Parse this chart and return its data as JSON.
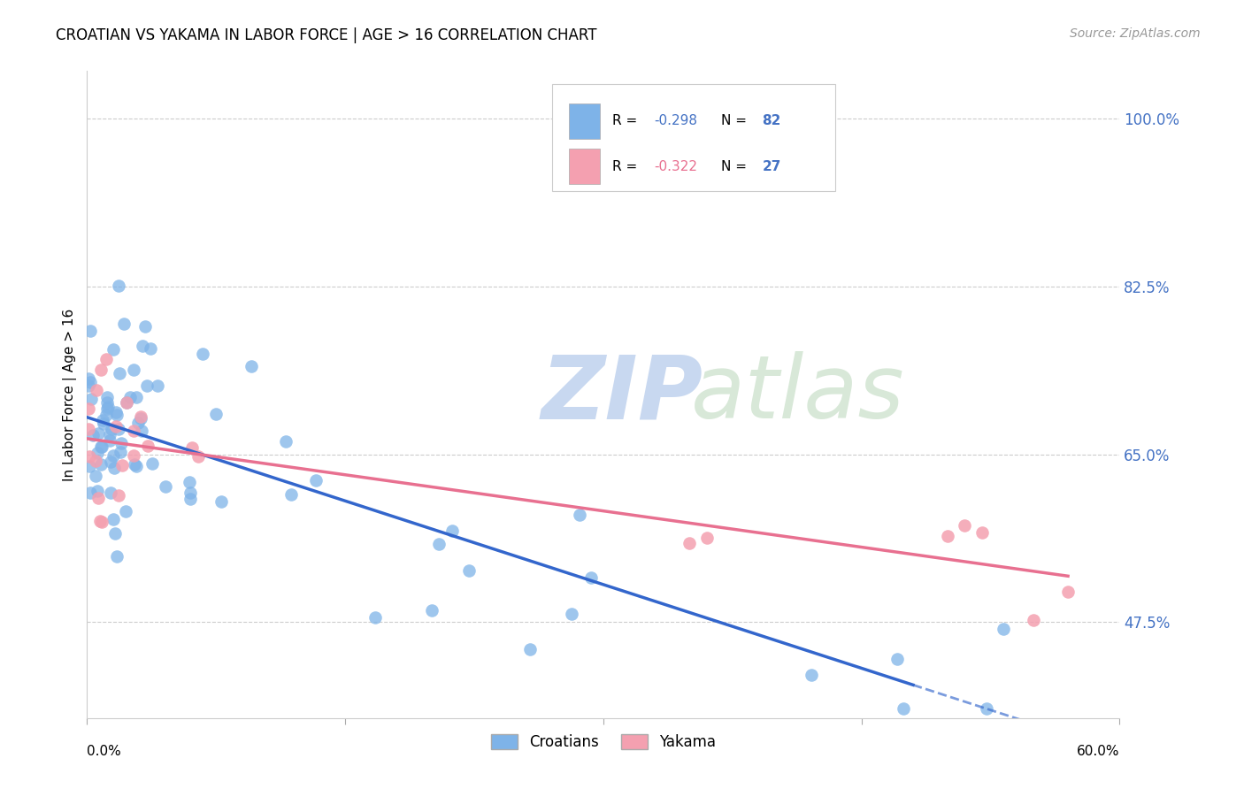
{
  "title": "CROATIAN VS YAKAMA IN LABOR FORCE | AGE > 16 CORRELATION CHART",
  "source": "Source: ZipAtlas.com",
  "ylabel": "In Labor Force | Age > 16",
  "ytick_labels": [
    "47.5%",
    "65.0%",
    "82.5%",
    "100.0%"
  ],
  "ytick_values": [
    0.475,
    0.65,
    0.825,
    1.0
  ],
  "xlim": [
    0.0,
    0.6
  ],
  "ylim": [
    0.375,
    1.05
  ],
  "croatian_R": -0.298,
  "croatian_N": 82,
  "yakama_R": -0.322,
  "yakama_N": 27,
  "croatian_color": "#7EB3E8",
  "yakama_color": "#F4A0B0",
  "trendline_croatian_color": "#3366CC",
  "trendline_yakama_color": "#E87090",
  "watermark_zip": "ZIP",
  "watermark_atlas": "atlas",
  "legend_label_croatians": "Croatians",
  "legend_label_yakama": "Yakama",
  "cr_R_color": "#4472C4",
  "cr_N_color": "#4472C4",
  "yk_R_color": "#E87090",
  "yk_N_color": "#4472C4",
  "ytick_color": "#4472C4"
}
